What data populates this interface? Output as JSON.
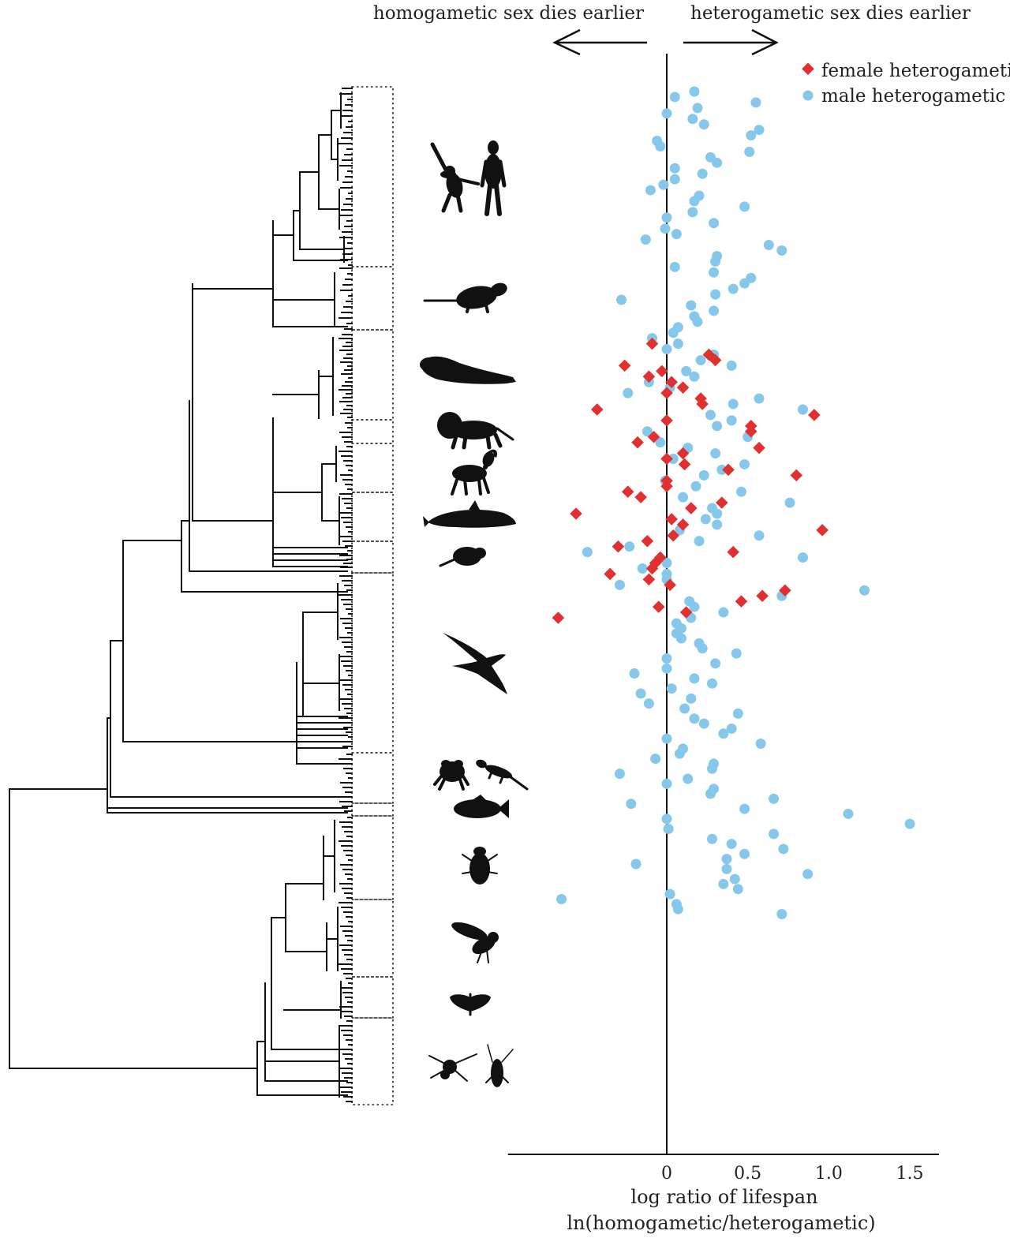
{
  "chart_data": {
    "type": "scatter",
    "xlabel_line1": "log ratio of lifespan",
    "xlabel_line2": "ln(homogametic/heterogametic)",
    "xlim": [
      -0.98,
      1.68
    ],
    "xticks": [
      0,
      0.5,
      1.0,
      1.5
    ],
    "xtick_labels": [
      "0",
      "0.5",
      "1.0",
      "1.5"
    ],
    "reference_line_x": 0,
    "direction_left": "homogametic sex dies earlier",
    "direction_right": "heterogametic sex dies earlier",
    "legend_position": "top-right",
    "colors": {
      "female": "#e03030",
      "male": "#86c8ec",
      "tree": "#111111"
    },
    "silhouettes": [
      "chimpanzee-and-human",
      "opossum",
      "seal",
      "lion",
      "goat",
      "dolphin",
      "rodent",
      "albatross",
      "frog-and-lizard",
      "fish",
      "beetle",
      "fly",
      "moth",
      "spider-and-cockroach"
    ],
    "series": [
      {
        "name": "female heterogametic",
        "marker": "diamond",
        "points": [
          [
            -0.09,
            0.46
          ],
          [
            0.26,
            0.48
          ],
          [
            0.3,
            0.49
          ],
          [
            -0.26,
            0.5
          ],
          [
            -0.03,
            0.51
          ],
          [
            -0.11,
            0.52
          ],
          [
            0.03,
            0.53
          ],
          [
            0.1,
            0.54
          ],
          [
            0.0,
            0.55
          ],
          [
            0.21,
            0.56
          ],
          [
            0.22,
            0.57
          ],
          [
            -0.43,
            0.58
          ],
          [
            0.91,
            0.59
          ],
          [
            0.0,
            0.6
          ],
          [
            0.52,
            0.61
          ],
          [
            0.52,
            0.62
          ],
          [
            -0.08,
            0.63
          ],
          [
            -0.18,
            0.64
          ],
          [
            0.57,
            0.65
          ],
          [
            0.1,
            0.66
          ],
          [
            0.0,
            0.67
          ],
          [
            0.11,
            0.68
          ],
          [
            0.38,
            0.69
          ],
          [
            0.8,
            0.7
          ],
          [
            0.0,
            0.71
          ],
          [
            0.0,
            0.72
          ],
          [
            -0.24,
            0.73
          ],
          [
            -0.16,
            0.74
          ],
          [
            0.34,
            0.75
          ],
          [
            0.15,
            0.76
          ],
          [
            -0.56,
            0.77
          ],
          [
            0.03,
            0.78
          ],
          [
            0.1,
            0.79
          ],
          [
            0.96,
            0.8
          ],
          [
            0.04,
            0.81
          ],
          [
            -0.12,
            0.82
          ],
          [
            -0.3,
            0.83
          ],
          [
            0.41,
            0.84
          ],
          [
            -0.04,
            0.85
          ],
          [
            -0.07,
            0.86
          ],
          [
            -0.09,
            0.87
          ],
          [
            -0.35,
            0.88
          ],
          [
            -0.11,
            0.89
          ],
          [
            0.02,
            0.9
          ],
          [
            0.73,
            0.91
          ],
          [
            0.59,
            0.92
          ],
          [
            0.46,
            0.93
          ],
          [
            -0.05,
            0.94
          ],
          [
            0.12,
            0.95
          ],
          [
            -0.67,
            0.96
          ]
        ]
      },
      {
        "name": "male heterogametic",
        "marker": "circle",
        "points": [
          [
            0.17,
            1.0
          ],
          [
            0.05,
            1.01
          ],
          [
            0.55,
            1.02
          ],
          [
            0.19,
            1.03
          ],
          [
            0.0,
            1.04
          ],
          [
            0.16,
            1.05
          ],
          [
            0.23,
            1.06
          ],
          [
            0.57,
            1.07
          ],
          [
            0.52,
            1.08
          ],
          [
            -0.06,
            1.09
          ],
          [
            -0.04,
            1.1
          ],
          [
            0.51,
            1.11
          ],
          [
            0.27,
            1.12
          ],
          [
            0.31,
            1.13
          ],
          [
            0.05,
            1.14
          ],
          [
            0.22,
            1.15
          ],
          [
            0.05,
            1.16
          ],
          [
            -0.02,
            1.17
          ],
          [
            -0.1,
            1.18
          ],
          [
            0.2,
            1.19
          ],
          [
            0.17,
            1.2
          ],
          [
            0.48,
            1.21
          ],
          [
            0.16,
            1.22
          ],
          [
            0.0,
            1.23
          ],
          [
            0.29,
            1.24
          ],
          [
            -0.01,
            1.25
          ],
          [
            0.06,
            1.26
          ],
          [
            -0.13,
            1.27
          ],
          [
            0.63,
            1.28
          ],
          [
            0.71,
            1.29
          ],
          [
            0.31,
            1.3
          ],
          [
            0.3,
            1.31
          ],
          [
            0.05,
            1.32
          ],
          [
            0.29,
            1.33
          ],
          [
            0.52,
            1.34
          ],
          [
            0.48,
            1.35
          ],
          [
            0.41,
            1.36
          ],
          [
            0.3,
            1.37
          ],
          [
            -0.28,
            1.38
          ],
          [
            0.15,
            1.39
          ],
          [
            0.29,
            1.4
          ],
          [
            0.17,
            1.41
          ],
          [
            0.19,
            1.42
          ],
          [
            0.07,
            1.43
          ],
          [
            0.04,
            1.44
          ],
          [
            -0.09,
            1.45
          ],
          [
            0.07,
            1.46
          ],
          [
            0.0,
            1.47
          ],
          [
            0.29,
            1.48
          ],
          [
            0.21,
            1.49
          ],
          [
            0.4,
            1.5
          ],
          [
            0.12,
            1.51
          ],
          [
            0.17,
            1.52
          ],
          [
            -0.11,
            1.53
          ],
          [
            0.02,
            1.54
          ],
          [
            -0.24,
            1.55
          ],
          [
            0.57,
            1.56
          ],
          [
            0.41,
            1.57
          ],
          [
            0.84,
            1.58
          ],
          [
            0.27,
            1.59
          ],
          [
            0.4,
            1.6
          ],
          [
            0.31,
            1.61
          ],
          [
            -0.12,
            1.62
          ],
          [
            0.5,
            1.63
          ],
          [
            -0.04,
            1.64
          ],
          [
            0.13,
            1.65
          ],
          [
            0.3,
            1.66
          ],
          [
            0.04,
            1.67
          ],
          [
            0.48,
            1.68
          ],
          [
            0.34,
            1.69
          ],
          [
            0.23,
            1.7
          ],
          [
            -0.01,
            1.71
          ],
          [
            0.18,
            1.72
          ],
          [
            0.46,
            1.73
          ],
          [
            0.1,
            1.74
          ],
          [
            0.76,
            1.75
          ],
          [
            0.28,
            1.76
          ],
          [
            0.31,
            1.77
          ],
          [
            0.24,
            1.78
          ],
          [
            0.31,
            1.79
          ],
          [
            0.08,
            1.8
          ],
          [
            0.57,
            1.81
          ],
          [
            0.2,
            1.82
          ],
          [
            -0.23,
            1.83
          ],
          [
            -0.49,
            1.84
          ],
          [
            0.84,
            1.85
          ],
          [
            0.0,
            1.86
          ],
          [
            -0.15,
            1.87
          ],
          [
            0.0,
            1.88
          ],
          [
            0.0,
            1.89
          ],
          [
            -0.29,
            1.9
          ],
          [
            1.22,
            1.91
          ],
          [
            0.71,
            1.92
          ],
          [
            0.14,
            1.93
          ],
          [
            0.17,
            1.94
          ],
          [
            0.35,
            1.95
          ],
          [
            0.15,
            1.96
          ],
          [
            0.06,
            2.0
          ],
          [
            0.09,
            2.01
          ],
          [
            0.06,
            2.02
          ],
          [
            0.09,
            2.03
          ],
          [
            0.2,
            2.04
          ],
          [
            0.22,
            2.05
          ],
          [
            0.43,
            2.06
          ],
          [
            0.0,
            2.07
          ],
          [
            0.3,
            2.08
          ],
          [
            0.0,
            2.09
          ],
          [
            -0.2,
            2.1
          ],
          [
            0.17,
            2.11
          ],
          [
            0.28,
            2.12
          ],
          [
            0.03,
            2.13
          ],
          [
            -0.16,
            2.14
          ],
          [
            0.15,
            2.15
          ],
          [
            -0.11,
            2.16
          ],
          [
            0.11,
            2.17
          ],
          [
            0.44,
            2.18
          ],
          [
            0.17,
            2.19
          ],
          [
            0.23,
            2.2
          ],
          [
            0.4,
            2.21
          ],
          [
            0.35,
            2.22
          ],
          [
            0.0,
            2.23
          ],
          [
            0.58,
            2.24
          ],
          [
            0.1,
            2.25
          ],
          [
            0.08,
            2.26
          ],
          [
            -0.07,
            2.27
          ],
          [
            0.29,
            2.28
          ],
          [
            0.28,
            2.29
          ],
          [
            -0.29,
            2.3
          ],
          [
            0.13,
            2.31
          ],
          [
            0.0,
            2.32
          ],
          [
            0.29,
            2.33
          ],
          [
            0.27,
            2.34
          ],
          [
            0.66,
            2.35
          ],
          [
            -0.22,
            2.36
          ],
          [
            0.48,
            2.37
          ],
          [
            1.12,
            2.38
          ],
          [
            0.0,
            2.39
          ],
          [
            1.5,
            2.4
          ],
          [
            0.01,
            2.41
          ],
          [
            0.66,
            2.42
          ],
          [
            0.28,
            2.43
          ],
          [
            0.4,
            2.44
          ],
          [
            0.72,
            2.45
          ],
          [
            0.48,
            2.46
          ],
          [
            0.37,
            2.47
          ],
          [
            -0.19,
            2.48
          ],
          [
            0.37,
            2.49
          ],
          [
            0.87,
            2.5
          ],
          [
            0.42,
            2.51
          ],
          [
            0.35,
            2.52
          ],
          [
            0.44,
            2.53
          ],
          [
            0.02,
            2.54
          ],
          [
            -0.65,
            2.55
          ],
          [
            0.06,
            2.56
          ],
          [
            0.07,
            2.57
          ],
          [
            0.71,
            2.58
          ]
        ]
      }
    ]
  }
}
